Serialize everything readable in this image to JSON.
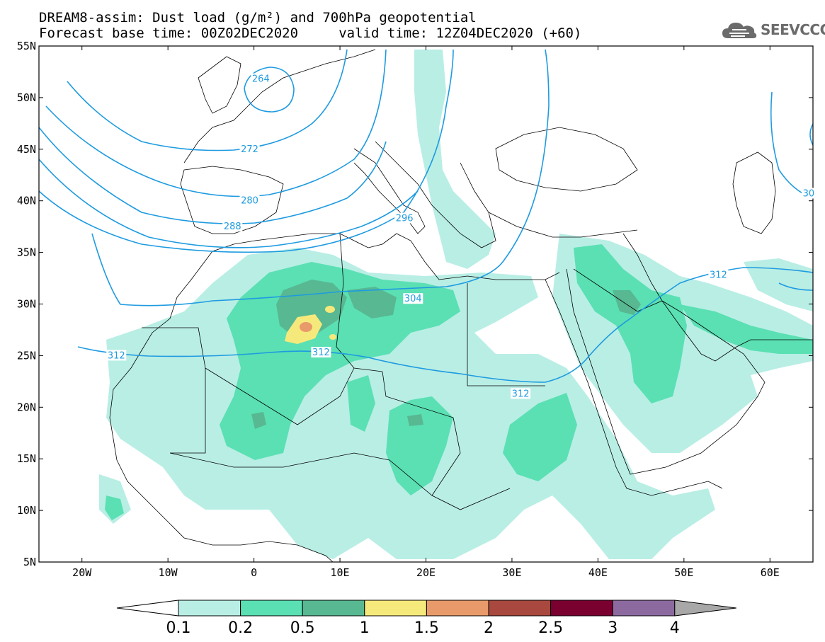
{
  "header": {
    "title_line_1": "DREAM8-assim: Dust load (g/m²) and 700hPa geopotential",
    "title_line_2": "Forecast base time: 00Z02DEC2020     valid time: 12Z04DEC2020 (+60)"
  },
  "logo": {
    "text": "SEEVCCC",
    "icon": "cloud-icon"
  },
  "map": {
    "projection": "cylindrical-equidistant",
    "lon_range": [
      -25,
      65
    ],
    "lat_range": [
      5,
      55
    ],
    "lat_ticks": [
      {
        "value": 55,
        "label": "55N"
      },
      {
        "value": 50,
        "label": "50N"
      },
      {
        "value": 45,
        "label": "45N"
      },
      {
        "value": 40,
        "label": "40N"
      },
      {
        "value": 35,
        "label": "35N"
      },
      {
        "value": 30,
        "label": "30N"
      },
      {
        "value": 25,
        "label": "25N"
      },
      {
        "value": 20,
        "label": "20N"
      },
      {
        "value": 15,
        "label": "15N"
      },
      {
        "value": 10,
        "label": "10N"
      },
      {
        "value": 5,
        "label": "5N"
      }
    ],
    "lon_ticks": [
      {
        "value": -20,
        "label": "20W"
      },
      {
        "value": -10,
        "label": "10W"
      },
      {
        "value": 0,
        "label": "0"
      },
      {
        "value": 10,
        "label": "10E"
      },
      {
        "value": 20,
        "label": "20E"
      },
      {
        "value": 30,
        "label": "30E"
      },
      {
        "value": 40,
        "label": "40E"
      },
      {
        "value": 50,
        "label": "50E"
      },
      {
        "value": 60,
        "label": "60E"
      }
    ],
    "contour_color": "#1e9be0",
    "contour_labels": [
      {
        "text": "264",
        "lon": 0.8,
        "lat": 51.8
      },
      {
        "text": "272",
        "lon": -0.5,
        "lat": 45.0
      },
      {
        "text": "280",
        "lon": -0.5,
        "lat": 40.0
      },
      {
        "text": "288",
        "lon": -2.5,
        "lat": 37.5
      },
      {
        "text": "296",
        "lon": 17.5,
        "lat": 38.3
      },
      {
        "text": "304",
        "lon": 18.5,
        "lat": 30.5
      },
      {
        "text": "312",
        "lon": 7.8,
        "lat": 25.3
      },
      {
        "text": "312",
        "lon": -16.0,
        "lat": 25.0
      },
      {
        "text": "312",
        "lon": 31.0,
        "lat": 21.3
      },
      {
        "text": "312",
        "lon": 54.0,
        "lat": 32.8
      },
      {
        "text": "30",
        "lon": 64.5,
        "lat": 40.7
      }
    ]
  },
  "colorbar": {
    "labels": [
      "0.1",
      "0.2",
      "0.5",
      "1",
      "1.5",
      "2",
      "2.5",
      "3",
      "4"
    ],
    "colors": [
      "#ffffff",
      "#b9eee5",
      "#5ae0b3",
      "#58b892",
      "#f6e97c",
      "#e89a6a",
      "#a8483e",
      "#7a0030",
      "#8c6aa0",
      "#a8a8a8"
    ]
  }
}
